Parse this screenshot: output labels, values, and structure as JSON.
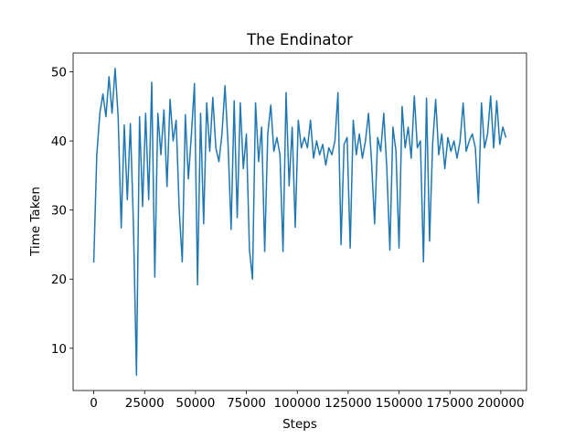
{
  "chart_data": {
    "type": "line",
    "title": "The Endinator",
    "x_label": "Steps",
    "y_label": "Time Taken",
    "x": [
      0,
      1500,
      3000,
      4500,
      6000,
      7500,
      9000,
      10500,
      12000,
      13500,
      15000,
      16500,
      18000,
      19500,
      21000,
      22500,
      24000,
      25500,
      27000,
      28500,
      30000,
      31500,
      33000,
      34500,
      36000,
      37500,
      39000,
      40500,
      42000,
      43500,
      45000,
      46500,
      48000,
      49500,
      51000,
      52500,
      54000,
      55500,
      57000,
      58500,
      60000,
      61500,
      63000,
      64500,
      66000,
      67500,
      69000,
      70500,
      72000,
      73500,
      75000,
      76500,
      78000,
      79500,
      81000,
      82500,
      84000,
      85500,
      87000,
      88500,
      90000,
      91500,
      93000,
      94500,
      96000,
      97500,
      99000,
      100500,
      102000,
      103500,
      105000,
      106500,
      108000,
      109500,
      111000,
      112500,
      114000,
      115500,
      117000,
      118500,
      120000,
      121500,
      123000,
      124500,
      126000,
      127500,
      129000,
      130500,
      132000,
      133500,
      135000,
      136500,
      138000,
      139500,
      141000,
      142500,
      144000,
      145500,
      147000,
      148500,
      150000,
      151500,
      153000,
      154500,
      156000,
      157500,
      159000,
      160500,
      162000,
      163500,
      165000,
      166500,
      168000,
      169500,
      171000,
      172500,
      174000,
      175500,
      177000,
      178500,
      180000,
      181500,
      183000,
      184500,
      186000,
      187500,
      189000,
      190500,
      192000,
      193500,
      195000,
      196500,
      198000,
      199500,
      201000,
      202500
    ],
    "series": [
      {
        "name": "Time Taken",
        "color": "#1f77b4",
        "values": [
          22.4,
          38,
          44,
          46.8,
          43.5,
          49.3,
          44,
          50.5,
          43.5,
          27.4,
          42.3,
          31.5,
          42.5,
          28,
          6.1,
          43.5,
          30.5,
          44,
          31.5,
          48.5,
          20.3,
          44,
          38,
          44.5,
          33.4,
          46,
          40,
          43,
          30,
          22.5,
          43.8,
          34.5,
          41,
          48.3,
          19.2,
          44,
          28,
          45.5,
          38.5,
          46.3,
          39,
          37,
          41,
          48,
          39.5,
          27.2,
          45.8,
          28.9,
          45.5,
          36,
          41,
          24.3,
          20,
          45.5,
          37,
          42,
          24,
          41,
          45.2,
          38.5,
          40.5,
          38,
          24,
          47,
          33.5,
          42,
          27.5,
          43,
          39,
          40.5,
          39,
          43,
          37.5,
          40,
          38,
          39.5,
          36.5,
          39,
          38,
          40,
          47,
          25,
          39.5,
          40.5,
          24.5,
          43,
          38,
          41,
          37.5,
          40,
          44,
          37,
          28,
          40.5,
          38.5,
          44,
          36,
          24.2,
          42,
          38.5,
          24.5,
          45,
          39,
          42,
          37.5,
          46.5,
          39,
          40,
          22.5,
          46.2,
          25.5,
          39.5,
          46,
          38,
          41,
          36,
          40.5,
          38.5,
          40,
          37.5,
          40,
          45.5,
          38.5,
          40,
          41,
          39,
          31,
          45.5,
          39,
          41,
          46.5,
          39,
          45.8,
          39.5,
          42,
          40.5
        ]
      }
    ],
    "xlim": [
      -10125,
      212625
    ],
    "ylim": [
      3.88,
      52.72
    ],
    "xticks": [
      0,
      25000,
      50000,
      75000,
      100000,
      125000,
      150000,
      175000,
      200000
    ],
    "yticks": [
      10,
      20,
      30,
      40,
      50
    ]
  }
}
